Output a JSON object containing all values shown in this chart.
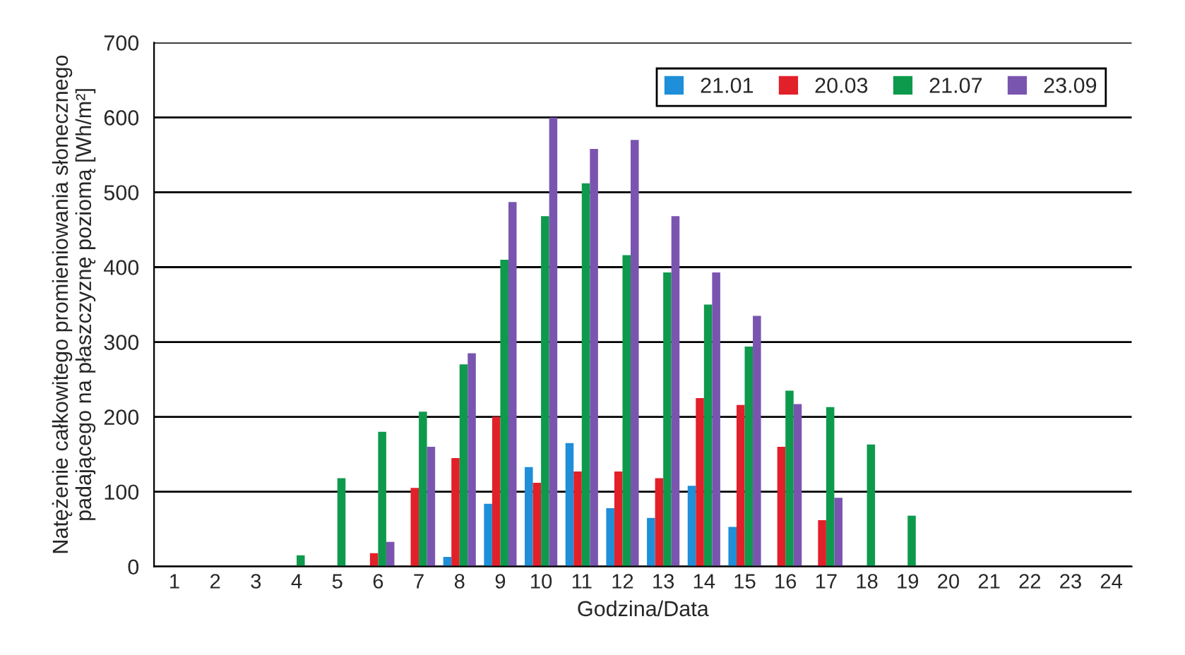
{
  "chart_data": {
    "type": "bar",
    "xlabel": "Godzina/Data",
    "ylabel": "Natężenie całkowitego promieniowania słonecznego\npadającego na płaszczyznę poziomą [Wh/m²]",
    "categories": [
      "1",
      "2",
      "3",
      "4",
      "5",
      "6",
      "7",
      "8",
      "9",
      "10",
      "11",
      "12",
      "13",
      "14",
      "15",
      "16",
      "17",
      "18",
      "19",
      "20",
      "21",
      "22",
      "23",
      "24"
    ],
    "series": [
      {
        "name": "21.01",
        "color": "#1e8fd8",
        "values": [
          null,
          null,
          null,
          null,
          null,
          null,
          null,
          13,
          84,
          133,
          165,
          78,
          65,
          108,
          53,
          null,
          null,
          null,
          null,
          null,
          null,
          null,
          null,
          null
        ]
      },
      {
        "name": "20.03",
        "color": "#e2202a",
        "values": [
          null,
          null,
          null,
          null,
          null,
          18,
          105,
          145,
          200,
          112,
          127,
          127,
          118,
          225,
          216,
          160,
          62,
          null,
          null,
          null,
          null,
          null,
          null,
          null
        ]
      },
      {
        "name": "21.07",
        "color": "#0e9a4c",
        "values": [
          null,
          null,
          null,
          15,
          118,
          180,
          207,
          270,
          410,
          468,
          512,
          416,
          393,
          350,
          294,
          235,
          213,
          163,
          68,
          null,
          null,
          null,
          null,
          null
        ]
      },
      {
        "name": "23.09",
        "color": "#7a55b0",
        "values": [
          null,
          null,
          null,
          null,
          null,
          33,
          160,
          285,
          487,
          600,
          558,
          570,
          468,
          393,
          335,
          217,
          92,
          null,
          null,
          null,
          null,
          null,
          null,
          null
        ]
      }
    ],
    "ylim": [
      0,
      700
    ],
    "yticks": [
      0,
      100,
      200,
      300,
      400,
      500,
      600,
      700
    ],
    "grid": "y",
    "legend": "top right"
  }
}
